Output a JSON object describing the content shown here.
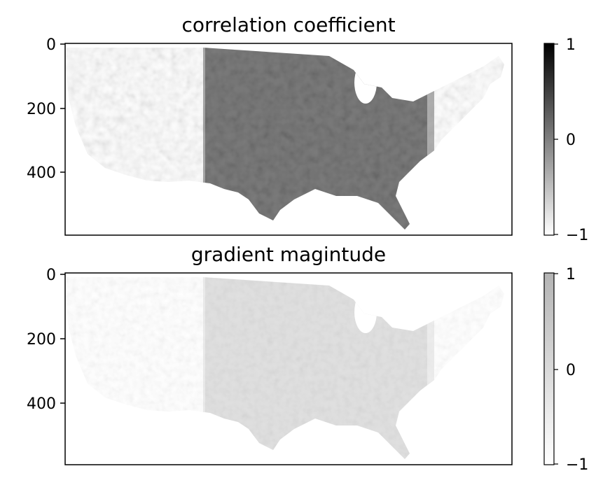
{
  "chart_data": [
    {
      "type": "heatmap",
      "title": "correlation coefficient",
      "image_rows": 600,
      "image_cols": 1400,
      "ylim": [
        600,
        0
      ],
      "yticks": [
        0,
        200,
        400
      ],
      "ytick_labels": [
        "0",
        "200",
        "400"
      ],
      "xticks": [],
      "colormap": "gray_r",
      "clim": [
        -1,
        1
      ],
      "colorbar_ticks": [
        -1,
        0,
        1
      ],
      "colorbar_tick_labels": [
        "−1",
        "0",
        "1"
      ],
      "content": "masked raster over the contiguous United States; dense dark (high correlation) values across the central and eastern interior, lighter textured values over the western mountains"
    },
    {
      "type": "heatmap",
      "title": "gradient magintude",
      "image_rows": 600,
      "image_cols": 1400,
      "ylim": [
        600,
        0
      ],
      "yticks": [
        0,
        200,
        400
      ],
      "ytick_labels": [
        "0",
        "200",
        "400"
      ],
      "xticks": [],
      "colormap": "light-gray",
      "clim": [
        -1,
        1
      ],
      "colorbar_ticks": [
        -1,
        0,
        1
      ],
      "colorbar_tick_labels": [
        "−1",
        "0",
        "1"
      ],
      "content": "masked raster over the contiguous United States; uniformly light gray values with slightly darker gray over the central plains"
    }
  ]
}
